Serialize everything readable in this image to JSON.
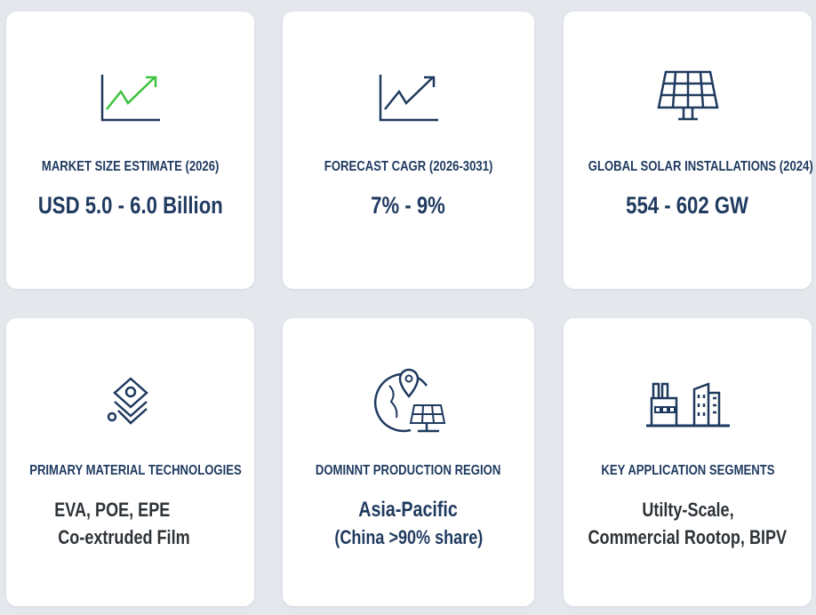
{
  "cards": [
    {
      "title": "MARKET SIZE ESTIMATE (2026)",
      "value": "USD 5.0 - 6.0 Billion",
      "icon": "trend-chart-green-icon"
    },
    {
      "title": "FORECAST CAGR (2026-3031)",
      "value": "7% - 9%",
      "icon": "trend-chart-icon"
    },
    {
      "title": "GLOBAL SOLAR INSTALLATIONS (2024)",
      "value": "554 - 602 GW",
      "icon": "solar-panel-icon"
    },
    {
      "title": "PRIMARY MATERIAL TECHNOLOGIES",
      "lines": [
        "EVA, POE, EPE",
        "Co-extruded Film"
      ],
      "icon": "layers-icon"
    },
    {
      "title": "DOMINNT PRODUCTION REGION",
      "lines": [
        "Asia-Pacific",
        "(China >90% share)"
      ],
      "icon": "globe-location-solar-icon"
    },
    {
      "title": "KEY APPLICATION SEGMENTS",
      "lines": [
        "Utilty-Scale,",
        "Commercial Rootop, BIPV"
      ],
      "icon": "factory-building-icon"
    }
  ],
  "colors": {
    "navy": "#1f3a5f",
    "green": "#3cc23c",
    "text_dark": "#2e3338",
    "background": "#e4e8ed"
  }
}
